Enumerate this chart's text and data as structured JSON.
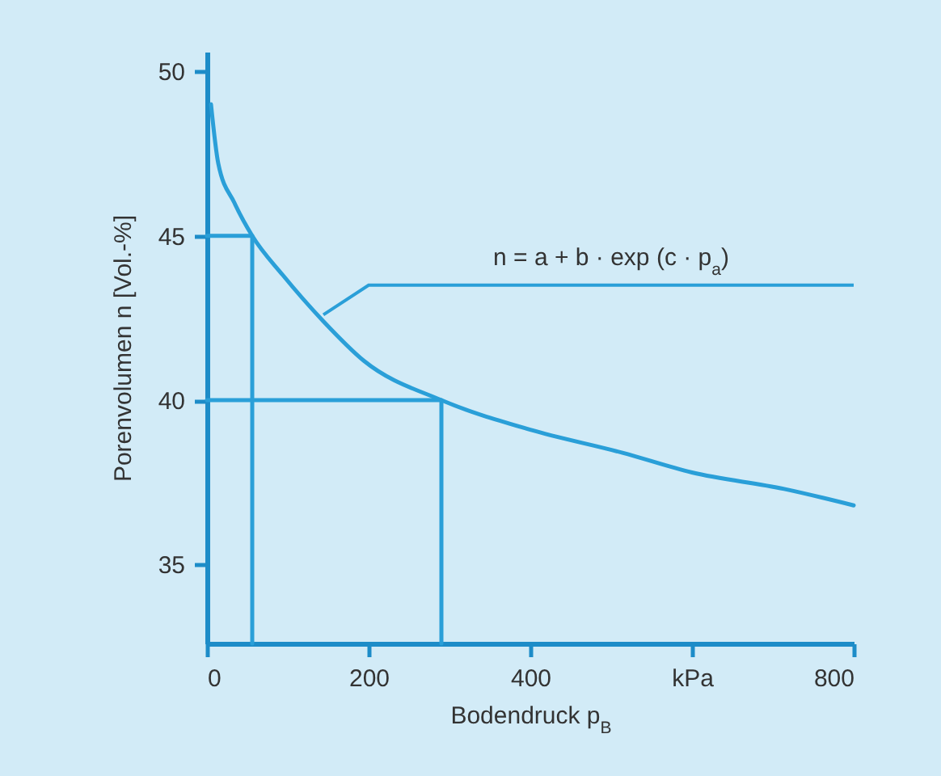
{
  "chart_data": {
    "type": "line",
    "xlabel": "Bodendruck p$_{B}$",
    "ylabel": "Porenvolumen n [Vol.-%]",
    "xlim": [
      0,
      800
    ],
    "ylim": [
      32.6,
      50.6
    ],
    "xticks": [
      0,
      200,
      400,
      {
        "value": 600,
        "label": "kPa"
      },
      800
    ],
    "yticks": [
      35,
      40,
      45,
      50
    ],
    "legend": false,
    "marker": "none",
    "line_style": "solid",
    "annotations": [
      {
        "text": "n = a + b · exp (c · p$_{a}$)",
        "x": 144,
        "y": 42.6
      }
    ],
    "series": [
      {
        "color": "#2a9fd8",
        "x": [
          5,
          14,
          34,
          56,
          94,
          144,
          194,
          290,
          400,
          514,
          600,
          714,
          800
        ],
        "values": [
          49.0,
          47.2,
          46.0,
          45.0,
          43.8,
          42.4,
          41.2,
          40.0,
          39.1,
          38.4,
          37.8,
          37.3,
          36.8
        ]
      },
      {
        "color": "#2a9fd8",
        "x": [
          0,
          56,
          56
        ],
        "values": [
          45,
          45,
          32.6
        ]
      },
      {
        "color": "#2a9fd8",
        "x": [
          0,
          290,
          290
        ],
        "values": [
          40,
          40,
          32.6
        ]
      }
    ]
  }
}
